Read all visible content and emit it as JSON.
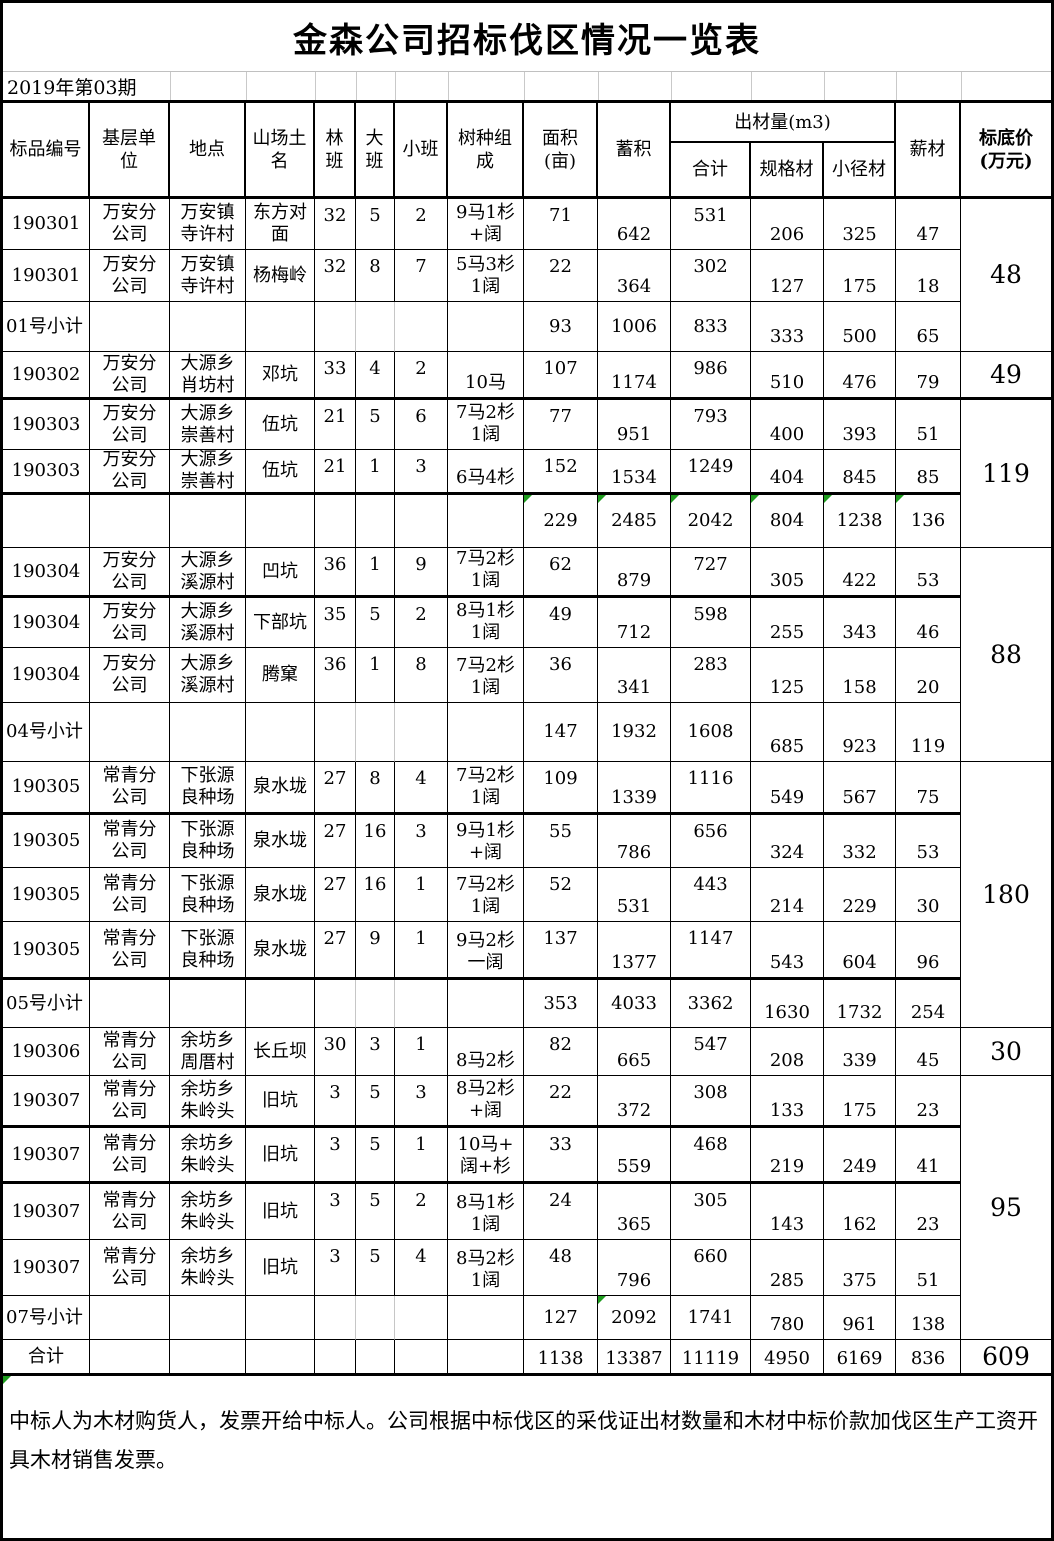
{
  "title": "金森公司招标伐区情况一览表",
  "period": "2019年第03期",
  "header": {
    "bid": "标品编号",
    "unit": "基层单\n位",
    "place": "地点",
    "site": "山场土\n名",
    "lin": "林\n班",
    "da": "大\n班",
    "xiao": "小班",
    "comp": "树种组\n成",
    "area": "面积\n(亩)",
    "vol": "蓄积",
    "out_group": "出材量(m3)",
    "total": "合计",
    "spec": "规格材",
    "small": "小径材",
    "fuel": "薪材",
    "price": "标底价\n(万元)"
  },
  "rows": [
    {
      "type": "data",
      "bid": "190301",
      "unit": "万安分\n公司",
      "place": "万安镇\n寺许村",
      "site": "东方对\n面",
      "lin": "32",
      "da": "5",
      "xiao": "2",
      "comp": "9马1杉\n+阔",
      "area": "71",
      "vol": "642",
      "total": "531",
      "spec": "206",
      "small": "325",
      "fuel": "47"
    },
    {
      "type": "data",
      "bid": "190301",
      "unit": "万安分\n公司",
      "place": "万安镇\n寺许村",
      "site": "杨梅岭",
      "lin": "32",
      "da": "8",
      "xiao": "7",
      "comp": "5马3杉\n1阔",
      "area": "22",
      "vol": "364",
      "total": "302",
      "spec": "127",
      "small": "175",
      "fuel": "18"
    },
    {
      "type": "subtotal",
      "label": "01号小计",
      "area": "93",
      "vol": "1006",
      "total": "833",
      "spec": "333",
      "small": "500",
      "fuel": "65",
      "grayMid": true
    },
    {
      "type": "data",
      "bid": "190302",
      "unit": "万安分\n公司",
      "place": "大源乡\n肖坊村",
      "site": "邓坑",
      "lin": "33",
      "da": "4",
      "xiao": "2",
      "comp": "10马",
      "area": "107",
      "vol": "1174",
      "total": "986",
      "spec": "510",
      "small": "476",
      "fuel": "79"
    },
    {
      "type": "data",
      "bid": "190303",
      "unit": "万安分\n公司",
      "place": "大源乡\n崇善村",
      "site": "伍坑",
      "lin": "21",
      "da": "5",
      "xiao": "6",
      "comp": "7马2杉\n1阔",
      "area": "77",
      "vol": "951",
      "total": "793",
      "spec": "400",
      "small": "393",
      "fuel": "51"
    },
    {
      "type": "data",
      "bid": "190303",
      "unit": "万安分\n公司",
      "place": "大源乡\n崇善村",
      "site": "伍坑",
      "lin": "21",
      "da": "1",
      "xiao": "3",
      "comp": "6马4杉",
      "area": "152",
      "vol": "1534",
      "total": "1249",
      "spec": "404",
      "small": "845",
      "fuel": "85"
    },
    {
      "type": "subtotal",
      "label": "",
      "area": "229",
      "vol": "2485",
      "total": "2042",
      "spec": "804",
      "small": "1238",
      "fuel": "136",
      "tri": [
        "area",
        "vol",
        "total",
        "spec",
        "small",
        "fuel"
      ]
    },
    {
      "type": "data",
      "bid": "190304",
      "unit": "万安分\n公司",
      "place": "大源乡\n溪源村",
      "site": "凹坑",
      "lin": "36",
      "da": "1",
      "xiao": "9",
      "comp": "7马2杉\n1阔",
      "area": "62",
      "vol": "879",
      "total": "727",
      "spec": "305",
      "small": "422",
      "fuel": "53"
    },
    {
      "type": "data",
      "bid": "190304",
      "unit": "万安分\n公司",
      "place": "大源乡\n溪源村",
      "site": "下部坑",
      "lin": "35",
      "da": "5",
      "xiao": "2",
      "comp": "8马1杉\n1阔",
      "area": "49",
      "vol": "712",
      "total": "598",
      "spec": "255",
      "small": "343",
      "fuel": "46"
    },
    {
      "type": "data",
      "bid": "190304",
      "unit": "万安分\n公司",
      "place": "大源乡\n溪源村",
      "site": "腾窠",
      "lin": "36",
      "da": "1",
      "xiao": "8",
      "comp": "7马2杉\n1阔",
      "area": "36",
      "vol": "341",
      "total": "283",
      "spec": "125",
      "small": "158",
      "fuel": "20"
    },
    {
      "type": "subtotal",
      "label": "04号小计",
      "area": "147",
      "vol": "1932",
      "total": "1608",
      "spec": "685",
      "small": "923",
      "fuel": "119",
      "grayMid": true
    },
    {
      "type": "data",
      "bid": "190305",
      "unit": "常青分\n公司",
      "place": "下张源\n良种场",
      "site": "泉水垅",
      "lin": "27",
      "da": "8",
      "xiao": "4",
      "comp": "7马2杉\n1阔",
      "area": "109",
      "vol": "1339",
      "total": "1116",
      "spec": "549",
      "small": "567",
      "fuel": "75"
    },
    {
      "type": "data",
      "bid": "190305",
      "unit": "常青分\n公司",
      "place": "下张源\n良种场",
      "site": "泉水垅",
      "lin": "27",
      "da": "16",
      "xiao": "3",
      "comp": "9马1杉\n+阔",
      "area": "55",
      "vol": "786",
      "total": "656",
      "spec": "324",
      "small": "332",
      "fuel": "53"
    },
    {
      "type": "data",
      "bid": "190305",
      "unit": "常青分\n公司",
      "place": "下张源\n良种场",
      "site": "泉水垅",
      "lin": "27",
      "da": "16",
      "xiao": "1",
      "comp": "7马2杉\n1阔",
      "area": "52",
      "vol": "531",
      "total": "443",
      "spec": "214",
      "small": "229",
      "fuel": "30"
    },
    {
      "type": "data",
      "bid": "190305",
      "unit": "常青分\n公司",
      "place": "下张源\n良种场",
      "site": "泉水垅",
      "lin": "27",
      "da": "9",
      "xiao": "1",
      "comp": "9马2杉\n一阔",
      "area": "137",
      "vol": "1377",
      "total": "1147",
      "spec": "543",
      "small": "604",
      "fuel": "96"
    },
    {
      "type": "subtotal",
      "label": "05号小计",
      "area": "353",
      "vol": "4033",
      "total": "3362",
      "spec": "1630",
      "small": "1732",
      "fuel": "254",
      "grayMid": true
    },
    {
      "type": "data",
      "bid": "190306",
      "unit": "常青分\n公司",
      "place": "余坊乡\n周厝村",
      "site": "长丘坝",
      "lin": "30",
      "da": "3",
      "xiao": "1",
      "comp": "8马2杉",
      "area": "82",
      "vol": "665",
      "total": "547",
      "spec": "208",
      "small": "339",
      "fuel": "45"
    },
    {
      "type": "data",
      "bid": "190307",
      "unit": "常青分\n公司",
      "place": "余坊乡\n朱岭头",
      "site": "旧坑",
      "lin": "3",
      "da": "5",
      "xiao": "3",
      "comp": "8马2杉\n+阔",
      "area": "22",
      "vol": "372",
      "total": "308",
      "spec": "133",
      "small": "175",
      "fuel": "23"
    },
    {
      "type": "data",
      "bid": "190307",
      "unit": "常青分\n公司",
      "place": "余坊乡\n朱岭头",
      "site": "旧坑",
      "lin": "3",
      "da": "5",
      "xiao": "1",
      "comp": "10马+\n阔+杉",
      "area": "33",
      "vol": "559",
      "total": "468",
      "spec": "219",
      "small": "249",
      "fuel": "41"
    },
    {
      "type": "data",
      "bid": "190307",
      "unit": "常青分\n公司",
      "place": "余坊乡\n朱岭头",
      "site": "旧坑",
      "lin": "3",
      "da": "5",
      "xiao": "2",
      "comp": "8马1杉\n1阔",
      "area": "24",
      "vol": "365",
      "total": "305",
      "spec": "143",
      "small": "162",
      "fuel": "23"
    },
    {
      "type": "data",
      "bid": "190307",
      "unit": "常青分\n公司",
      "place": "余坊乡\n朱岭头",
      "site": "旧坑",
      "lin": "3",
      "da": "5",
      "xiao": "4",
      "comp": "8马2杉\n1阔",
      "area": "48",
      "vol": "796",
      "total": "660",
      "spec": "285",
      "small": "375",
      "fuel": "51"
    },
    {
      "type": "subtotal",
      "label": "07号小计",
      "area": "127",
      "vol": "2092",
      "total": "1741",
      "spec": "780",
      "small": "961",
      "fuel": "138",
      "tri": [
        "vol"
      ],
      "grayMid": true
    },
    {
      "type": "total",
      "label": "合计",
      "area": "1138",
      "vol": "13387",
      "total": "11119",
      "spec": "4950",
      "small": "6169",
      "fuel": "836"
    }
  ],
  "prices": [
    {
      "value": "48",
      "start": 1,
      "span": 3
    },
    {
      "value": "49",
      "start": 4,
      "span": 1
    },
    {
      "value": "119",
      "start": 5,
      "span": 3
    },
    {
      "value": "88",
      "start": 8,
      "span": 4
    },
    {
      "value": "180",
      "start": 12,
      "span": 5
    },
    {
      "value": "30",
      "start": 17,
      "span": 1
    },
    {
      "value": "95",
      "start": 18,
      "span": 5
    },
    {
      "value": "609",
      "start": 23,
      "span": 1
    }
  ],
  "footer": "中标人为木材购货人，发票开给中标人。公司根据中标伐区的采伐证出材数量和木材中标价款加伐区生产工资开具木材销售发票。",
  "colors": {
    "error_indicator": "#1e9c1e",
    "border": "#000000",
    "light_grid": "#c9c9c9"
  }
}
